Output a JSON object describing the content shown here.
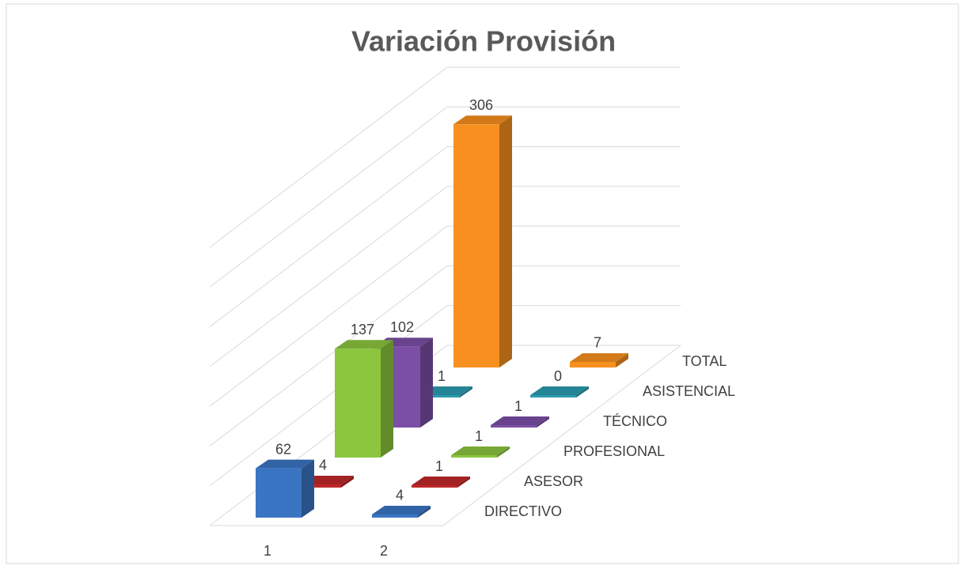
{
  "chart_data": {
    "type": "bar3d",
    "title": "Variación Provisión",
    "categories": [
      "1",
      "2"
    ],
    "series": [
      {
        "name": "DIRECTIVO",
        "color": "#3a75c4",
        "values": [
          62,
          4
        ]
      },
      {
        "name": "ASESOR",
        "color": "#c0282a",
        "values": [
          4,
          1
        ]
      },
      {
        "name": "PROFESIONAL",
        "color": "#8cc63f",
        "values": [
          137,
          1
        ]
      },
      {
        "name": "TÉCNICO",
        "color": "#7b4fa6",
        "values": [
          102,
          1
        ]
      },
      {
        "name": "ASISTENCIAL",
        "color": "#2b9bb0",
        "values": [
          1,
          0
        ]
      },
      {
        "name": "TOTAL",
        "color": "#f7901e",
        "values": [
          306,
          7
        ]
      }
    ],
    "ylim": [
      0,
      350
    ],
    "yticks": [
      0,
      50,
      100,
      150,
      200,
      250,
      300,
      350
    ],
    "grid": true
  }
}
